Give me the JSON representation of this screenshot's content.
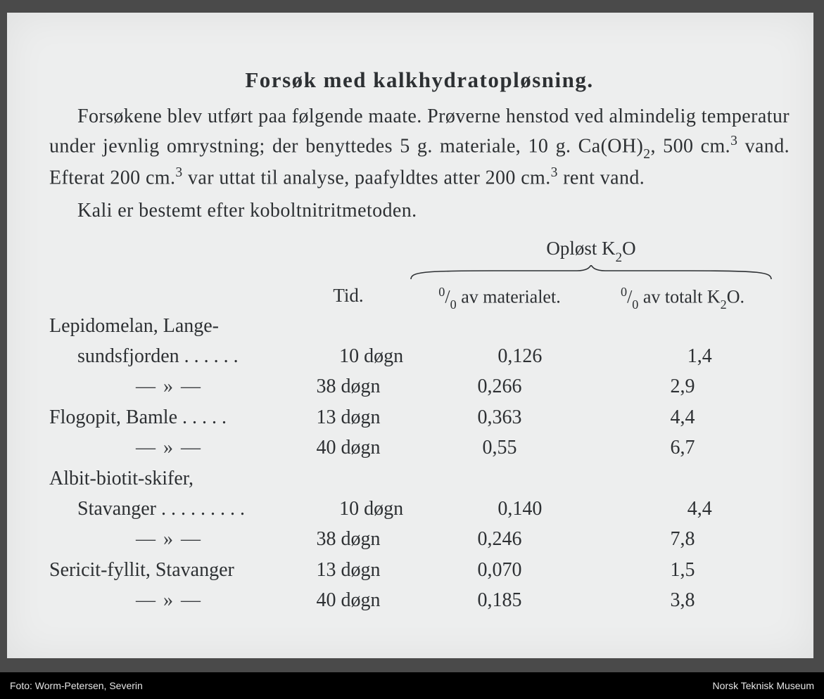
{
  "title": "Forsøk med kalkhydratopløsning.",
  "paragraph_html": "Forsøkene blev utført paa følgende maate.  Prøverne henstod ved almindelig temperatur under jevnlig omrystning; der benyttedes 5 g. materiale, 10 g. Ca(OH)<sub>2</sub>, 500 cm.<sup>3</sup> vand.  Efterat 200 cm.<sup>3</sup> var uttat til analyse, paafyldtes atter 200 cm.<sup>3</sup> rent vand.",
  "paragraph2": "Kali er bestemt efter koboltnitritmetoden.",
  "table": {
    "group_header_html": "Opløst K<sub>2</sub>O",
    "col_tid": "Tid.",
    "col_mat_html": "<sup>0</sup>/<sub>0</sub> av materialet.",
    "col_tot_html": "<sup>0</sup>/<sub>0</sub> av totalt K<sub>2</sub>O.",
    "ditto": "— » —",
    "rows": [
      {
        "label_line1": "Lepidomelan, Lange-",
        "label_line2": "sundsfjorden . . . . . .",
        "tid": "10  døgn",
        "mat": "0,126",
        "tot": "1,4"
      },
      {
        "ditto": true,
        "tid": "38  døgn",
        "mat": "0,266",
        "tot": "2,9"
      },
      {
        "label_line1": "Flogopit, Bamle . . . . .",
        "tid": "13  døgn",
        "mat": "0,363",
        "tot": "4,4"
      },
      {
        "ditto": true,
        "tid": "40  døgn",
        "mat": "0,55",
        "tot": "6,7"
      },
      {
        "label_line1": "Albit-biotit-skifer,",
        "label_line2": "Stavanger . . . . . . . . .",
        "tid": "10  døgn",
        "mat": "0,140",
        "tot": "4,4"
      },
      {
        "ditto": true,
        "tid": "38  døgn",
        "mat": "0,246",
        "tot": "7,8"
      },
      {
        "label_line1": "Sericit-fyllit, Stavanger",
        "tid": "13  døgn",
        "mat": "0,070",
        "tot": "1,5"
      },
      {
        "ditto": true,
        "tid": "40  døgn",
        "mat": "0,185",
        "tot": "3,8"
      }
    ]
  },
  "caption_left": "Foto: Worm-Petersen, Severin",
  "caption_right": "Norsk Teknisk Museum",
  "colors": {
    "page_bg": "#edeeee",
    "outer_bg": "#4a4a4a",
    "text": "#2d3033",
    "caption_bg": "#000000",
    "caption_text": "#e6e6e6"
  }
}
